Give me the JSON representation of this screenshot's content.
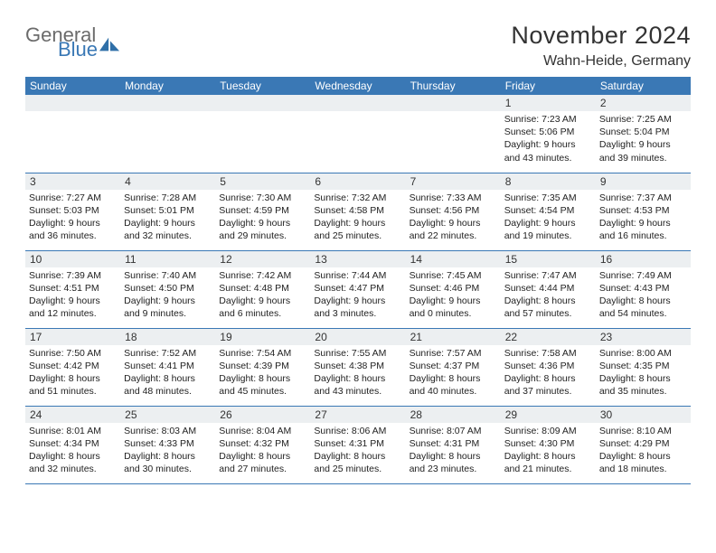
{
  "logo": {
    "text1": "General",
    "text2": "Blue",
    "mark_color": "#2f6fa8"
  },
  "header": {
    "title": "November 2024",
    "location": "Wahn-Heide, Germany"
  },
  "colors": {
    "header_bar": "#3a78b5",
    "daynum_bg": "#eceff1",
    "row_border": "#3a78b5",
    "text": "#222222",
    "logo_gray": "#6b6b6b"
  },
  "weekday_labels": [
    "Sunday",
    "Monday",
    "Tuesday",
    "Wednesday",
    "Thursday",
    "Friday",
    "Saturday"
  ],
  "weeks": [
    [
      null,
      null,
      null,
      null,
      null,
      {
        "n": "1",
        "sr": "Sunrise: 7:23 AM",
        "ss": "Sunset: 5:06 PM",
        "d1": "Daylight: 9 hours",
        "d2": "and 43 minutes."
      },
      {
        "n": "2",
        "sr": "Sunrise: 7:25 AM",
        "ss": "Sunset: 5:04 PM",
        "d1": "Daylight: 9 hours",
        "d2": "and 39 minutes."
      }
    ],
    [
      {
        "n": "3",
        "sr": "Sunrise: 7:27 AM",
        "ss": "Sunset: 5:03 PM",
        "d1": "Daylight: 9 hours",
        "d2": "and 36 minutes."
      },
      {
        "n": "4",
        "sr": "Sunrise: 7:28 AM",
        "ss": "Sunset: 5:01 PM",
        "d1": "Daylight: 9 hours",
        "d2": "and 32 minutes."
      },
      {
        "n": "5",
        "sr": "Sunrise: 7:30 AM",
        "ss": "Sunset: 4:59 PM",
        "d1": "Daylight: 9 hours",
        "d2": "and 29 minutes."
      },
      {
        "n": "6",
        "sr": "Sunrise: 7:32 AM",
        "ss": "Sunset: 4:58 PM",
        "d1": "Daylight: 9 hours",
        "d2": "and 25 minutes."
      },
      {
        "n": "7",
        "sr": "Sunrise: 7:33 AM",
        "ss": "Sunset: 4:56 PM",
        "d1": "Daylight: 9 hours",
        "d2": "and 22 minutes."
      },
      {
        "n": "8",
        "sr": "Sunrise: 7:35 AM",
        "ss": "Sunset: 4:54 PM",
        "d1": "Daylight: 9 hours",
        "d2": "and 19 minutes."
      },
      {
        "n": "9",
        "sr": "Sunrise: 7:37 AM",
        "ss": "Sunset: 4:53 PM",
        "d1": "Daylight: 9 hours",
        "d2": "and 16 minutes."
      }
    ],
    [
      {
        "n": "10",
        "sr": "Sunrise: 7:39 AM",
        "ss": "Sunset: 4:51 PM",
        "d1": "Daylight: 9 hours",
        "d2": "and 12 minutes."
      },
      {
        "n": "11",
        "sr": "Sunrise: 7:40 AM",
        "ss": "Sunset: 4:50 PM",
        "d1": "Daylight: 9 hours",
        "d2": "and 9 minutes."
      },
      {
        "n": "12",
        "sr": "Sunrise: 7:42 AM",
        "ss": "Sunset: 4:48 PM",
        "d1": "Daylight: 9 hours",
        "d2": "and 6 minutes."
      },
      {
        "n": "13",
        "sr": "Sunrise: 7:44 AM",
        "ss": "Sunset: 4:47 PM",
        "d1": "Daylight: 9 hours",
        "d2": "and 3 minutes."
      },
      {
        "n": "14",
        "sr": "Sunrise: 7:45 AM",
        "ss": "Sunset: 4:46 PM",
        "d1": "Daylight: 9 hours",
        "d2": "and 0 minutes."
      },
      {
        "n": "15",
        "sr": "Sunrise: 7:47 AM",
        "ss": "Sunset: 4:44 PM",
        "d1": "Daylight: 8 hours",
        "d2": "and 57 minutes."
      },
      {
        "n": "16",
        "sr": "Sunrise: 7:49 AM",
        "ss": "Sunset: 4:43 PM",
        "d1": "Daylight: 8 hours",
        "d2": "and 54 minutes."
      }
    ],
    [
      {
        "n": "17",
        "sr": "Sunrise: 7:50 AM",
        "ss": "Sunset: 4:42 PM",
        "d1": "Daylight: 8 hours",
        "d2": "and 51 minutes."
      },
      {
        "n": "18",
        "sr": "Sunrise: 7:52 AM",
        "ss": "Sunset: 4:41 PM",
        "d1": "Daylight: 8 hours",
        "d2": "and 48 minutes."
      },
      {
        "n": "19",
        "sr": "Sunrise: 7:54 AM",
        "ss": "Sunset: 4:39 PM",
        "d1": "Daylight: 8 hours",
        "d2": "and 45 minutes."
      },
      {
        "n": "20",
        "sr": "Sunrise: 7:55 AM",
        "ss": "Sunset: 4:38 PM",
        "d1": "Daylight: 8 hours",
        "d2": "and 43 minutes."
      },
      {
        "n": "21",
        "sr": "Sunrise: 7:57 AM",
        "ss": "Sunset: 4:37 PM",
        "d1": "Daylight: 8 hours",
        "d2": "and 40 minutes."
      },
      {
        "n": "22",
        "sr": "Sunrise: 7:58 AM",
        "ss": "Sunset: 4:36 PM",
        "d1": "Daylight: 8 hours",
        "d2": "and 37 minutes."
      },
      {
        "n": "23",
        "sr": "Sunrise: 8:00 AM",
        "ss": "Sunset: 4:35 PM",
        "d1": "Daylight: 8 hours",
        "d2": "and 35 minutes."
      }
    ],
    [
      {
        "n": "24",
        "sr": "Sunrise: 8:01 AM",
        "ss": "Sunset: 4:34 PM",
        "d1": "Daylight: 8 hours",
        "d2": "and 32 minutes."
      },
      {
        "n": "25",
        "sr": "Sunrise: 8:03 AM",
        "ss": "Sunset: 4:33 PM",
        "d1": "Daylight: 8 hours",
        "d2": "and 30 minutes."
      },
      {
        "n": "26",
        "sr": "Sunrise: 8:04 AM",
        "ss": "Sunset: 4:32 PM",
        "d1": "Daylight: 8 hours",
        "d2": "and 27 minutes."
      },
      {
        "n": "27",
        "sr": "Sunrise: 8:06 AM",
        "ss": "Sunset: 4:31 PM",
        "d1": "Daylight: 8 hours",
        "d2": "and 25 minutes."
      },
      {
        "n": "28",
        "sr": "Sunrise: 8:07 AM",
        "ss": "Sunset: 4:31 PM",
        "d1": "Daylight: 8 hours",
        "d2": "and 23 minutes."
      },
      {
        "n": "29",
        "sr": "Sunrise: 8:09 AM",
        "ss": "Sunset: 4:30 PM",
        "d1": "Daylight: 8 hours",
        "d2": "and 21 minutes."
      },
      {
        "n": "30",
        "sr": "Sunrise: 8:10 AM",
        "ss": "Sunset: 4:29 PM",
        "d1": "Daylight: 8 hours",
        "d2": "and 18 minutes."
      }
    ]
  ]
}
